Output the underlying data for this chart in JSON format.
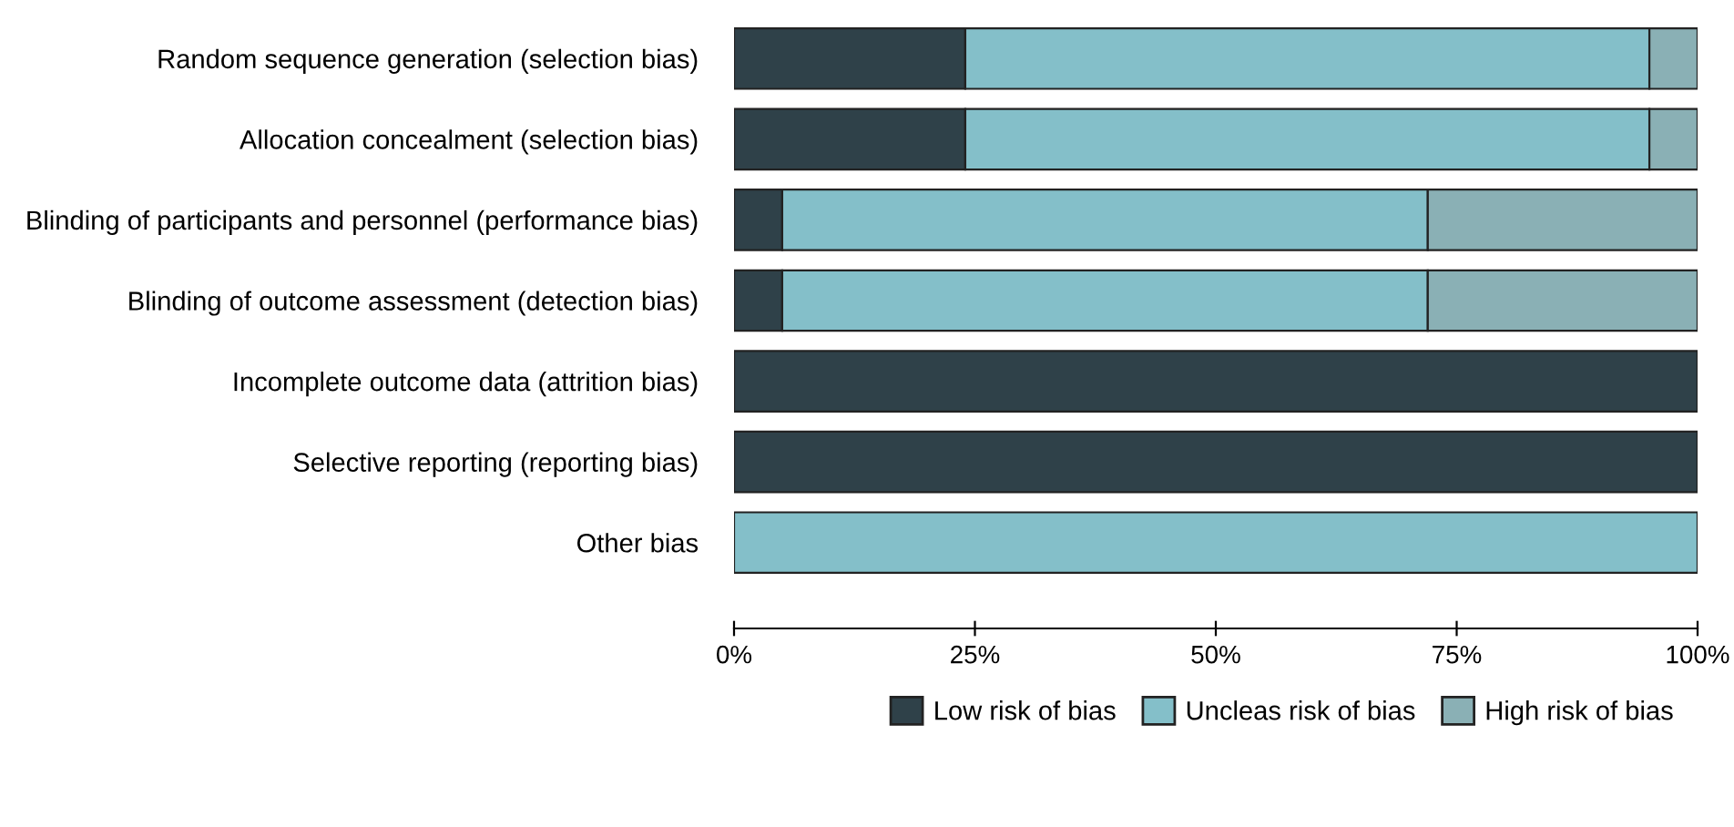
{
  "chart_data": {
    "type": "bar",
    "orientation": "horizontal",
    "stacked": true,
    "categories": [
      "Random sequence generation (selection bias)",
      "Allocation concealment (selection bias)",
      "Blinding of participants and personnel (performance bias)",
      "Blinding of outcome assessment (detection bias)",
      "Incomplete outcome data (attrition bias)",
      "Selective reporting (reporting bias)",
      "Other bias"
    ],
    "series": [
      {
        "name": "Low risk of bias",
        "color": "#2f4149",
        "values": [
          24,
          24,
          5,
          5,
          100,
          100,
          0
        ]
      },
      {
        "name": "Uncleas risk of bias",
        "color": "#84bfc9",
        "values": [
          71,
          71,
          67,
          67,
          0,
          0,
          100
        ]
      },
      {
        "name": "High risk of bias",
        "color": "#8ab0b5",
        "values": [
          5,
          5,
          28,
          28,
          0,
          0,
          0
        ]
      }
    ],
    "xlim": [
      0,
      100
    ],
    "xticks": [
      {
        "value": 0,
        "label": "0%"
      },
      {
        "value": 25,
        "label": "25%"
      },
      {
        "value": 50,
        "label": "50%"
      },
      {
        "value": 75,
        "label": "75%"
      },
      {
        "value": 100,
        "label": "100%"
      }
    ],
    "grid": false,
    "legend": "bottom right"
  }
}
